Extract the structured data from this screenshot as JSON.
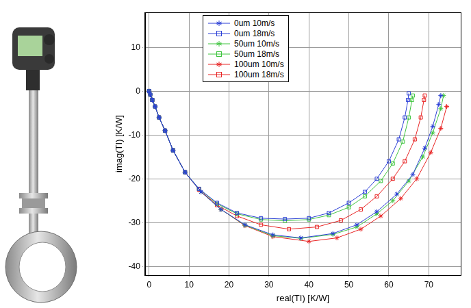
{
  "chart_data": {
    "type": "line",
    "x_label": "real(TI) [K/W]",
    "y_label": "imag(TI) [K/W]",
    "xlim": [
      -1,
      78
    ],
    "ylim": [
      -42,
      18
    ],
    "xticks": [
      0,
      10,
      20,
      30,
      40,
      50,
      60,
      70
    ],
    "yticks": [
      -40,
      -30,
      -20,
      -10,
      0,
      10
    ],
    "grid": true,
    "legend": "upper center",
    "series": [
      {
        "name": "0um 10m/s",
        "color": "#2b3fd6",
        "marker": "star",
        "line_style": "solid",
        "x": [
          0,
          0.3,
          0.8,
          1.5,
          2.5,
          4,
          6,
          9,
          13,
          18,
          24,
          31,
          38,
          46,
          52,
          57,
          62,
          66,
          69,
          71,
          72.5,
          73
        ],
        "values": [
          0,
          -0.8,
          -2,
          -3.5,
          -6,
          -9,
          -13.5,
          -18.5,
          -23,
          -27,
          -30.5,
          -32.8,
          -33.5,
          -32.5,
          -30.5,
          -27.5,
          -23.5,
          -19,
          -13,
          -8,
          -3,
          -1
        ]
      },
      {
        "name": "0um 18m/s",
        "color": "#2b3fd6",
        "marker": "square",
        "line_style": "solid",
        "x": [
          0,
          0.3,
          0.8,
          1.5,
          2.5,
          4,
          6,
          9,
          12.5,
          17,
          22,
          28,
          34,
          40,
          45,
          50,
          54,
          57,
          60,
          62.5,
          64,
          64.8,
          65
        ],
        "values": [
          0,
          -0.8,
          -2,
          -3.5,
          -6,
          -9,
          -13.5,
          -18.5,
          -22.3,
          -25.5,
          -27.8,
          -29,
          -29.2,
          -29,
          -27.8,
          -25.5,
          -23,
          -20,
          -16,
          -11,
          -6,
          -2,
          -0.5
        ]
      },
      {
        "name": "50um 10m/s",
        "color": "#3fc43f",
        "marker": "star",
        "line_style": "solid",
        "x": [
          0,
          0.3,
          0.8,
          1.5,
          2.5,
          4,
          6,
          9,
          13,
          18,
          24,
          31,
          38,
          46,
          52,
          57,
          61,
          65,
          68.5,
          71,
          73,
          73.7
        ],
        "values": [
          0,
          -0.8,
          -2,
          -3.5,
          -6,
          -9,
          -13.5,
          -18.5,
          -23,
          -27,
          -30.6,
          -33,
          -33.6,
          -32.7,
          -31,
          -28,
          -25,
          -20.5,
          -15,
          -9.5,
          -4,
          -1
        ]
      },
      {
        "name": "50um 18m/s",
        "color": "#3fc43f",
        "marker": "square",
        "line_style": "solid",
        "x": [
          0,
          0.3,
          0.8,
          1.5,
          2.5,
          4,
          6,
          9,
          12.5,
          17,
          22,
          28,
          34,
          40,
          45,
          50,
          54,
          58,
          61,
          63.5,
          65,
          65.8,
          66
        ],
        "values": [
          0,
          -0.8,
          -2,
          -3.5,
          -6,
          -9,
          -13.5,
          -18.5,
          -22.3,
          -25.7,
          -28,
          -29.3,
          -29.6,
          -29.3,
          -28.3,
          -26.5,
          -24,
          -20.5,
          -16.5,
          -11.5,
          -6,
          -2,
          -1
        ]
      },
      {
        "name": "100um 10m/s",
        "color": "#e82424",
        "marker": "star",
        "line_style": "solid",
        "x": [
          0,
          0.3,
          0.8,
          1.5,
          2.5,
          4,
          6,
          9,
          13,
          18,
          24,
          31,
          40,
          47,
          53,
          58,
          63,
          67,
          70.5,
          73,
          74.5
        ],
        "values": [
          0,
          -0.8,
          -2,
          -3.5,
          -6,
          -9,
          -13.5,
          -18.5,
          -23,
          -27,
          -30.7,
          -33.2,
          -34.3,
          -33.5,
          -31.5,
          -28.5,
          -24.5,
          -20,
          -14,
          -8.5,
          -3.5
        ]
      },
      {
        "name": "100um 18m/s",
        "color": "#e82424",
        "marker": "square",
        "line_style": "solid",
        "x": [
          0,
          0.3,
          0.8,
          1.5,
          2.5,
          4,
          6,
          9,
          12.5,
          17,
          22,
          28,
          35,
          42,
          48,
          53,
          57,
          61,
          64,
          66.5,
          68,
          68.8,
          69
        ],
        "values": [
          0,
          -0.8,
          -2,
          -3.5,
          -6,
          -9,
          -13.5,
          -18.5,
          -22.5,
          -26,
          -28.5,
          -30.5,
          -31.5,
          -31,
          -29.5,
          -27,
          -24,
          -20,
          -16,
          -11,
          -6,
          -2,
          -1
        ]
      }
    ]
  }
}
